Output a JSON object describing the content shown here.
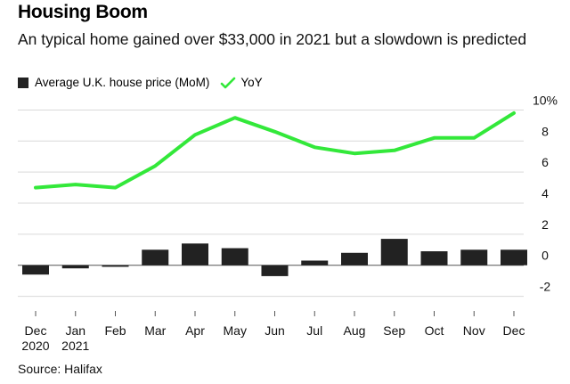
{
  "header": {
    "title": "Housing Boom",
    "subtitle": "An typical home gained over $33,000 in 2021 but a slowdown is predicted"
  },
  "footer": {
    "source": "Source: Halifax"
  },
  "chart_data": {
    "type": "bar",
    "categories": [
      [
        "Dec",
        "2020"
      ],
      [
        "Jan",
        "2021"
      ],
      [
        "Feb"
      ],
      [
        "Mar"
      ],
      [
        "Apr"
      ],
      [
        "May"
      ],
      [
        "Jun"
      ],
      [
        "Jul"
      ],
      [
        "Aug"
      ],
      [
        "Sep"
      ],
      [
        "Oct"
      ],
      [
        "Nov"
      ],
      [
        "Dec"
      ]
    ],
    "series": [
      {
        "name": "Average U.K. house price (MoM)",
        "type": "bar",
        "color": "#222222",
        "values": [
          -0.6,
          -0.2,
          -0.1,
          1.0,
          1.4,
          1.1,
          -0.7,
          0.3,
          0.8,
          1.7,
          0.9,
          1.0,
          1.0
        ]
      },
      {
        "name": "YoY",
        "type": "line",
        "color": "#33e83a",
        "values": [
          5.0,
          5.2,
          5.0,
          6.4,
          8.4,
          9.5,
          8.6,
          7.6,
          7.2,
          7.4,
          8.2,
          8.2,
          9.8
        ]
      }
    ],
    "yaxis": {
      "ylim": [
        -3,
        10.8
      ],
      "ticks": [
        10,
        8,
        6,
        4,
        2,
        0,
        -2
      ],
      "tick_labels": [
        "10%",
        "8",
        "6",
        "4",
        "2",
        "0",
        "-2"
      ]
    },
    "grid": true,
    "legend": "top-left"
  }
}
